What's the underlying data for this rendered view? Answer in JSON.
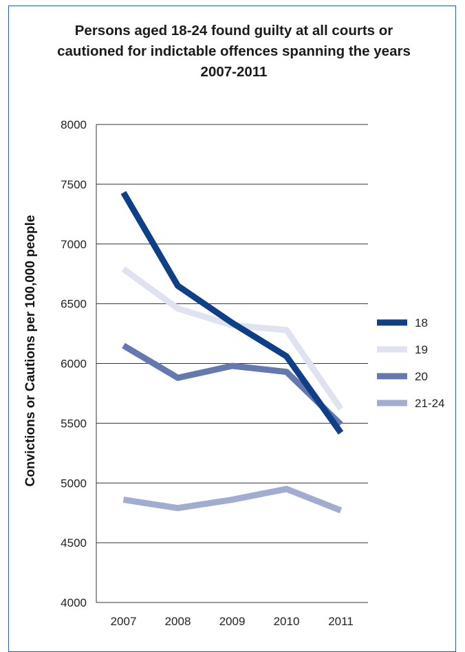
{
  "chart_data": {
    "type": "line",
    "title": "Persons aged 18-24 found guilty at all courts or cautioned for indictable offences spanning the years 2007-2011",
    "xlabel": "",
    "ylabel": "Convictions or Cautions per 100,000 people",
    "x": [
      "2007",
      "2008",
      "2009",
      "2010",
      "2011"
    ],
    "ylim": [
      4000,
      8000
    ],
    "yticks": [
      4000,
      4500,
      5000,
      5500,
      6000,
      6500,
      7000,
      7500,
      8000
    ],
    "grid": true,
    "legend_position": "right",
    "series": [
      {
        "name": "18",
        "color": "#0f3f87",
        "values": [
          7430,
          6650,
          6340,
          6060,
          5420
        ]
      },
      {
        "name": "19",
        "color": "#dfe3ef",
        "values": [
          6790,
          6460,
          6320,
          6280,
          5620
        ]
      },
      {
        "name": "20",
        "color": "#6579b0",
        "values": [
          6150,
          5880,
          5980,
          5930,
          5490
        ]
      },
      {
        "name": "21-24",
        "color": "#a2acd1",
        "values": [
          4860,
          4790,
          4860,
          4950,
          4770
        ]
      }
    ]
  }
}
